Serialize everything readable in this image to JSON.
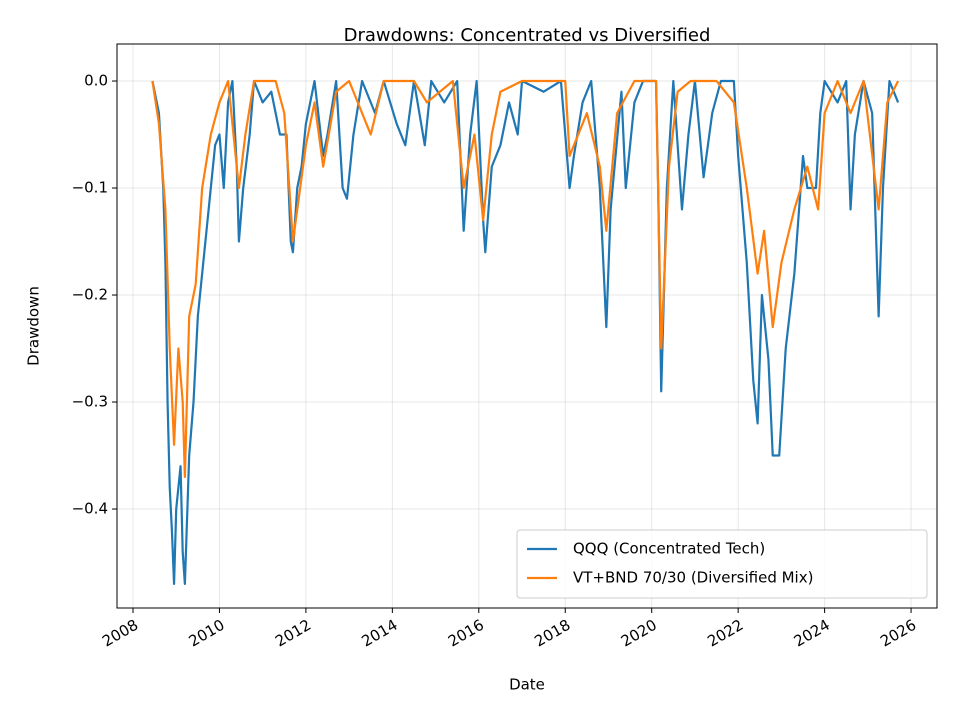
{
  "chart_data": {
    "type": "line",
    "title": "Drawdowns: Concentrated vs Diversified",
    "x_label": "Date",
    "y_label": "Drawdown",
    "xlim": [
      2007.63,
      2026.6
    ],
    "ylim": [
      -0.4925,
      0.0346
    ],
    "xticks": [
      2008,
      2010,
      2012,
      2014,
      2016,
      2018,
      2020,
      2022,
      2024,
      2026
    ],
    "yticks": [
      {
        "value": 0,
        "label": "0.0"
      },
      {
        "value": -0.1,
        "label": "−0.1"
      },
      {
        "value": -0.2,
        "label": "−0.2"
      },
      {
        "value": -0.3,
        "label": "−0.3"
      },
      {
        "value": -0.4,
        "label": "−0.4"
      }
    ],
    "grid": true,
    "legend": "lower right",
    "series": [
      {
        "name": "QQQ (Concentrated Tech)",
        "color": "#1f77b4",
        "x": [
          2008.45,
          2008.55,
          2008.6,
          2008.7,
          2008.75,
          2008.8,
          2008.85,
          2008.9,
          2008.95,
          2009.0,
          2009.1,
          2009.15,
          2009.2,
          2009.3,
          2009.4,
          2009.5,
          2009.6,
          2009.7,
          2009.8,
          2009.9,
          2010.0,
          2010.1,
          2010.2,
          2010.3,
          2010.4,
          2010.45,
          2010.55,
          2010.7,
          2010.8,
          2011.0,
          2011.2,
          2011.4,
          2011.55,
          2011.65,
          2011.7,
          2011.8,
          2011.9,
          2012.0,
          2012.2,
          2012.4,
          2012.5,
          2012.7,
          2012.85,
          2012.95,
          2013.1,
          2013.3,
          2013.6,
          2013.8,
          2014.1,
          2014.3,
          2014.5,
          2014.75,
          2014.9,
          2015.2,
          2015.5,
          2015.65,
          2015.8,
          2015.95,
          2016.1,
          2016.15,
          2016.3,
          2016.5,
          2016.7,
          2016.9,
          2017.0,
          2017.5,
          2017.9,
          2018.1,
          2018.2,
          2018.4,
          2018.6,
          2018.8,
          2018.95,
          2019.05,
          2019.3,
          2019.4,
          2019.6,
          2019.8,
          2020.1,
          2020.15,
          2020.22,
          2020.35,
          2020.5,
          2020.7,
          2020.85,
          2021.0,
          2021.2,
          2021.4,
          2021.6,
          2021.9,
          2022.0,
          2022.2,
          2022.35,
          2022.45,
          2022.55,
          2022.7,
          2022.8,
          2022.95,
          2023.1,
          2023.3,
          2023.5,
          2023.6,
          2023.8,
          2023.9,
          2024.0,
          2024.3,
          2024.5,
          2024.6,
          2024.7,
          2024.9,
          2025.1,
          2025.25,
          2025.35,
          2025.5,
          2025.7
        ],
        "values": [
          0,
          -0.02,
          -0.03,
          -0.1,
          -0.17,
          -0.3,
          -0.38,
          -0.42,
          -0.47,
          -0.4,
          -0.36,
          -0.44,
          -0.47,
          -0.35,
          -0.3,
          -0.22,
          -0.18,
          -0.14,
          -0.1,
          -0.06,
          -0.05,
          -0.1,
          -0.02,
          0,
          -0.08,
          -0.15,
          -0.1,
          -0.05,
          0,
          -0.02,
          -0.01,
          -0.05,
          -0.05,
          -0.15,
          -0.16,
          -0.1,
          -0.08,
          -0.04,
          0,
          -0.07,
          -0.05,
          0,
          -0.1,
          -0.11,
          -0.05,
          0,
          -0.03,
          0,
          -0.04,
          -0.06,
          0,
          -0.06,
          0,
          -0.02,
          0,
          -0.14,
          -0.05,
          0,
          -0.13,
          -0.16,
          -0.08,
          -0.06,
          -0.02,
          -0.05,
          0,
          -0.01,
          0,
          -0.1,
          -0.07,
          -0.02,
          0,
          -0.1,
          -0.23,
          -0.12,
          -0.01,
          -0.1,
          -0.02,
          0,
          0,
          -0.1,
          -0.29,
          -0.1,
          0,
          -0.12,
          -0.05,
          0,
          -0.09,
          -0.03,
          0,
          0,
          -0.07,
          -0.17,
          -0.28,
          -0.32,
          -0.2,
          -0.26,
          -0.35,
          -0.35,
          -0.25,
          -0.18,
          -0.07,
          -0.1,
          -0.1,
          -0.03,
          0,
          -0.02,
          0,
          -0.12,
          -0.05,
          0,
          -0.03,
          -0.22,
          -0.1,
          0,
          -0.02
        ]
      },
      {
        "name": "VT+BND 70/30 (Diversified Mix)",
        "color": "#ff7f0e",
        "x": [
          2008.45,
          2008.6,
          2008.75,
          2008.85,
          2008.95,
          2009.05,
          2009.15,
          2009.2,
          2009.3,
          2009.45,
          2009.6,
          2009.8,
          2010.0,
          2010.2,
          2010.45,
          2010.6,
          2010.8,
          2011.3,
          2011.5,
          2011.7,
          2011.8,
          2012.0,
          2012.2,
          2012.4,
          2012.7,
          2013.0,
          2013.5,
          2013.8,
          2014.5,
          2014.8,
          2015.4,
          2015.65,
          2015.9,
          2016.1,
          2016.3,
          2016.5,
          2017.0,
          2018.0,
          2018.1,
          2018.5,
          2018.8,
          2018.95,
          2019.2,
          2019.6,
          2020.1,
          2020.22,
          2020.4,
          2020.6,
          2020.9,
          2021.5,
          2021.9,
          2022.2,
          2022.45,
          2022.6,
          2022.8,
          2023.0,
          2023.3,
          2023.6,
          2023.85,
          2024.0,
          2024.3,
          2024.6,
          2024.9,
          2025.25,
          2025.45,
          2025.7
        ],
        "values": [
          0,
          -0.04,
          -0.12,
          -0.25,
          -0.34,
          -0.25,
          -0.3,
          -0.37,
          -0.22,
          -0.19,
          -0.1,
          -0.05,
          -0.02,
          0,
          -0.1,
          -0.05,
          0,
          0,
          -0.03,
          -0.15,
          -0.12,
          -0.06,
          -0.02,
          -0.08,
          -0.01,
          0,
          -0.05,
          0,
          0,
          -0.02,
          0,
          -0.1,
          -0.05,
          -0.13,
          -0.05,
          -0.01,
          0,
          0,
          -0.07,
          -0.03,
          -0.08,
          -0.14,
          -0.03,
          0,
          0,
          -0.25,
          -0.08,
          -0.01,
          0,
          0,
          -0.02,
          -0.1,
          -0.18,
          -0.14,
          -0.23,
          -0.17,
          -0.12,
          -0.08,
          -0.12,
          -0.03,
          0,
          -0.03,
          0,
          -0.12,
          -0.02,
          0
        ]
      }
    ]
  }
}
